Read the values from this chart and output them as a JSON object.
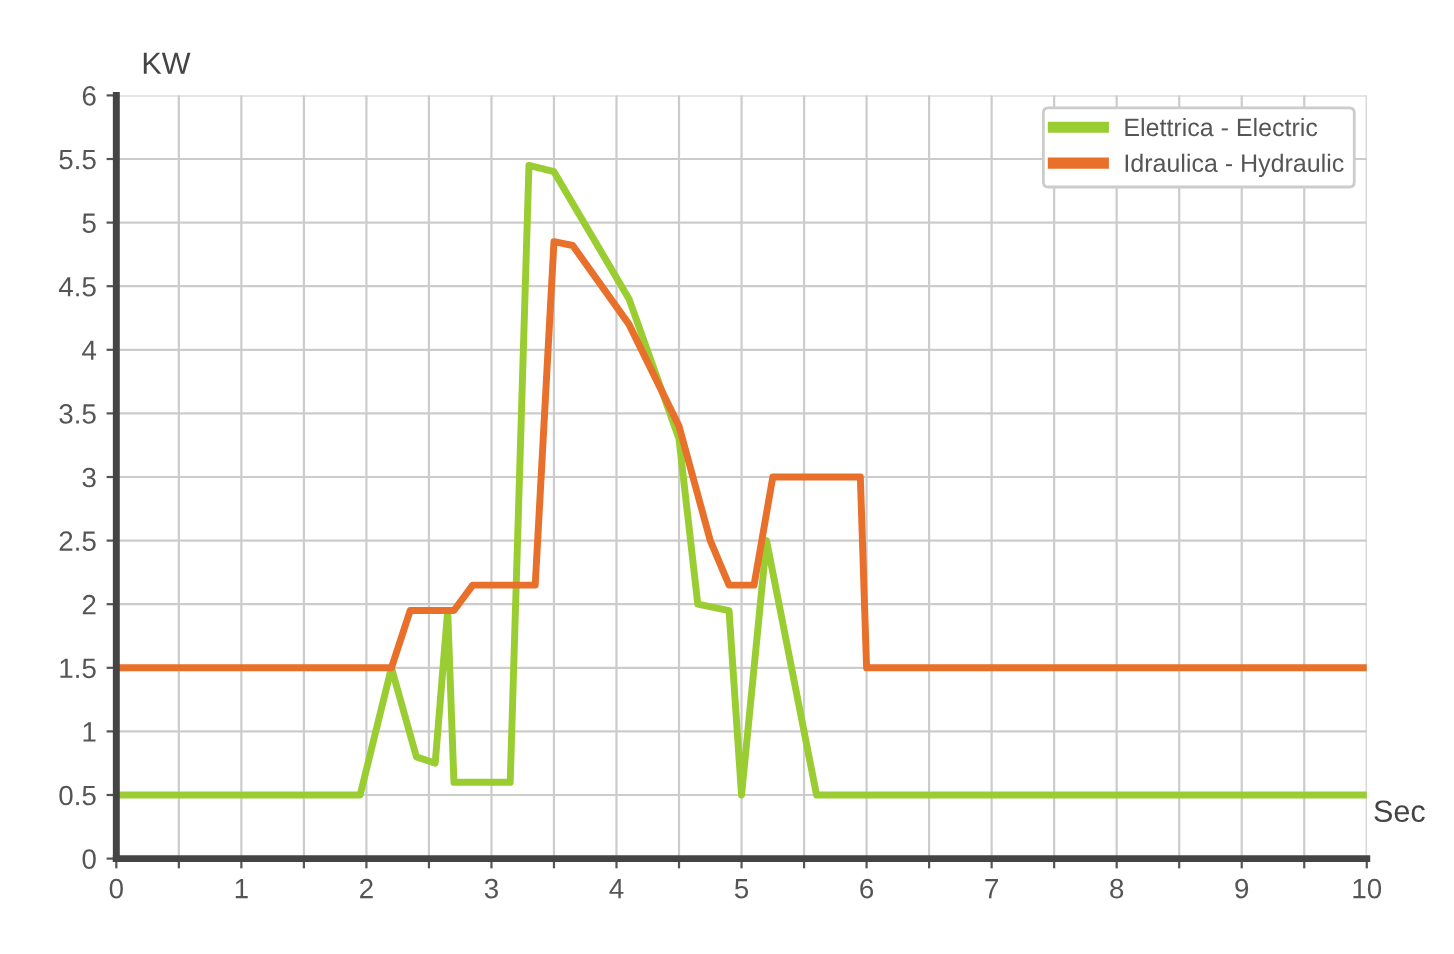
{
  "chart_data": {
    "type": "line",
    "xlabel": "Sec",
    "ylabel": "KW",
    "series": [
      {
        "name": "Elettrica - Electric",
        "color": "#9acd32",
        "x": [
          0,
          1.95,
          2.2,
          2.4,
          2.55,
          2.65,
          2.7,
          3.15,
          3.3,
          3.5,
          4.1,
          4.5,
          4.65,
          4.9,
          5.0,
          5.2,
          5.6,
          10
        ],
        "values": [
          0.5,
          0.5,
          1.5,
          0.8,
          0.75,
          1.95,
          0.6,
          0.6,
          5.45,
          5.4,
          4.4,
          3.3,
          2.0,
          1.95,
          0.5,
          2.5,
          0.5,
          0.5
        ]
      },
      {
        "name": "Idraulica - Hydraulic",
        "color": "#e8702a",
        "x": [
          0,
          2.2,
          2.35,
          2.7,
          2.85,
          3.35,
          3.5,
          3.65,
          4.1,
          4.5,
          4.75,
          4.9,
          5.1,
          5.25,
          5.95,
          6.0,
          10
        ],
        "values": [
          1.5,
          1.5,
          1.95,
          1.95,
          2.15,
          2.15,
          4.85,
          4.82,
          4.2,
          3.4,
          2.5,
          2.15,
          2.15,
          3.0,
          3.0,
          1.5,
          1.5
        ]
      }
    ],
    "xlim": [
      0,
      10
    ],
    "xticks": [
      0,
      {
        "value": 0.5,
        "label": null
      },
      1,
      {
        "value": 1.5,
        "label": null
      },
      2,
      {
        "value": 2.5,
        "label": null
      },
      3,
      {
        "value": 3.5,
        "label": null
      },
      4,
      {
        "value": 4.5,
        "label": null
      },
      5,
      {
        "value": 5.5,
        "label": null
      },
      6,
      {
        "value": 6.5,
        "label": null
      },
      7,
      {
        "value": 7.5,
        "label": null
      },
      8,
      {
        "value": 8.5,
        "label": null
      },
      9,
      {
        "value": 9.5,
        "label": null
      },
      10
    ],
    "ylim": [
      0,
      6
    ],
    "yticks": [
      0,
      0.5,
      1,
      1.5,
      2,
      2.5,
      3,
      3.5,
      4,
      4.5,
      5,
      5.5,
      6
    ],
    "grid": true,
    "legend": "top right",
    "marker": "none",
    "line_style": "solid"
  }
}
